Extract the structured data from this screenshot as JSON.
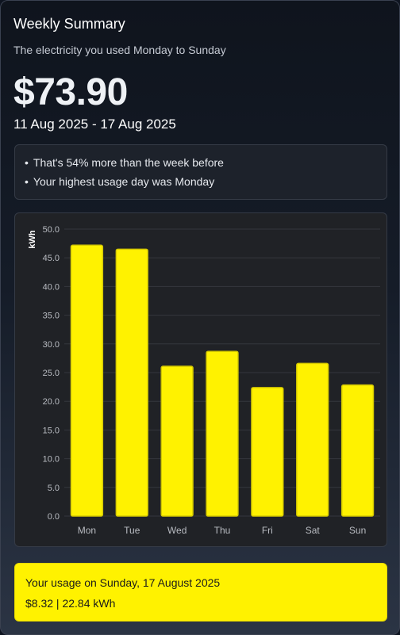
{
  "header": {
    "title": "Weekly Summary",
    "subtitle": "The electricity you used Monday to Sunday",
    "amount": "$73.90",
    "date_range": "11 Aug 2025 - 17 Aug 2025"
  },
  "insights": [
    "That's 54% more than the week before",
    "Your highest usage day was Monday"
  ],
  "bullet": "•",
  "colors": {
    "bar": "#fff200",
    "bar_stroke": "#d4c800",
    "grid": "#34373d",
    "axis_text": "#b9bcc2"
  },
  "chart_data": {
    "type": "bar",
    "categories": [
      "Mon",
      "Tue",
      "Wed",
      "Thu",
      "Fri",
      "Sat",
      "Sun"
    ],
    "values": [
      47.2,
      46.5,
      26.1,
      28.7,
      22.4,
      26.6,
      22.84
    ],
    "ylabel": "kWh",
    "ylim": [
      0,
      50
    ],
    "yticks": [
      "0.0",
      "5.0",
      "10.0",
      "15.0",
      "20.0",
      "25.0",
      "30.0",
      "35.0",
      "40.0",
      "45.0",
      "50.0"
    ],
    "grid": true,
    "legend": "none"
  },
  "detail": {
    "title": "Your usage on Sunday, 17 August 2025",
    "values": "$8.32 | 22.84 kWh"
  }
}
